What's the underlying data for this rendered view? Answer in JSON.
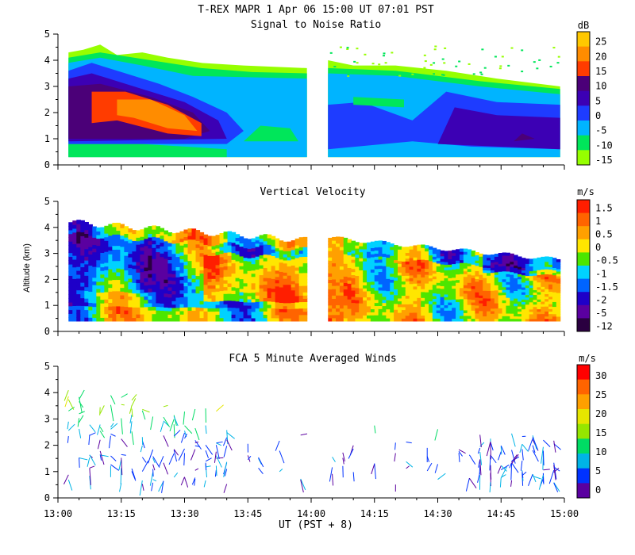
{
  "header": {
    "title": "T-REX  MAPR  1 Apr 06  15:00 UT  07:01  PST"
  },
  "x_axis": {
    "xlabel": "UT  (PST + 8)",
    "ticks": [
      "13:00",
      "13:15",
      "13:30",
      "13:45",
      "14:00",
      "14:15",
      "14:30",
      "14:45",
      "15:00"
    ]
  },
  "chart_data": [
    {
      "type": "heatmap",
      "title": "Signal to Noise Ratio",
      "xlabel": "",
      "ylabel": "",
      "x_range": [
        "13:00",
        "15:00"
      ],
      "ylim": [
        0,
        5
      ],
      "yticks": [
        "0",
        "1",
        "2",
        "3",
        "4",
        "5"
      ],
      "colorbar": {
        "unit": "dB",
        "labels": [
          "25",
          "20",
          "15",
          "10",
          "5",
          "0",
          "-5",
          "-10",
          "-15"
        ],
        "colors": [
          "#ffc800",
          "#ff8c00",
          "#ff3c00",
          "#4b0078",
          "#3c00b4",
          "#1e3cff",
          "#00b4ff",
          "#00e65a",
          "#96ff00"
        ]
      },
      "data_gap": [
        "13:59",
        "14:03"
      ]
    },
    {
      "type": "heatmap",
      "title": "Vertical Velocity",
      "xlabel": "",
      "ylabel": "Altitude (km)",
      "x_range": [
        "13:00",
        "15:00"
      ],
      "ylim": [
        0,
        5
      ],
      "yticks": [
        "0",
        "1",
        "2",
        "3",
        "4",
        "5"
      ],
      "colorbar": {
        "unit": "m/s",
        "labels": [
          "1.5",
          "1",
          "0.5",
          "0",
          "-0.5",
          "-1",
          "-1.5",
          "-2",
          "-5",
          "-12"
        ],
        "colors": [
          "#ff1e00",
          "#ff6400",
          "#ffa000",
          "#ffe600",
          "#4ce600",
          "#00d2ff",
          "#0064ff",
          "#1e00c8",
          "#5a00a0",
          "#2a0040"
        ]
      },
      "data_gap": [
        "13:59",
        "14:03"
      ]
    },
    {
      "type": "scatter",
      "title": "FCA 5 Minute Averaged Winds",
      "xlabel": "UT  (PST + 8)",
      "ylabel": "",
      "x_range": [
        "13:00",
        "15:00"
      ],
      "ylim": [
        0,
        5
      ],
      "yticks": [
        "0",
        "1",
        "2",
        "3",
        "4",
        "5"
      ],
      "colorbar": {
        "unit": "m/s",
        "labels": [
          "30",
          "25",
          "20",
          "15",
          "10",
          "5",
          "0"
        ],
        "colors": [
          "#ff0000",
          "#ff6400",
          "#ffa000",
          "#e6e600",
          "#96e600",
          "#00dc64",
          "#00b4e6",
          "#0032ff",
          "#5a00a0"
        ]
      }
    }
  ]
}
